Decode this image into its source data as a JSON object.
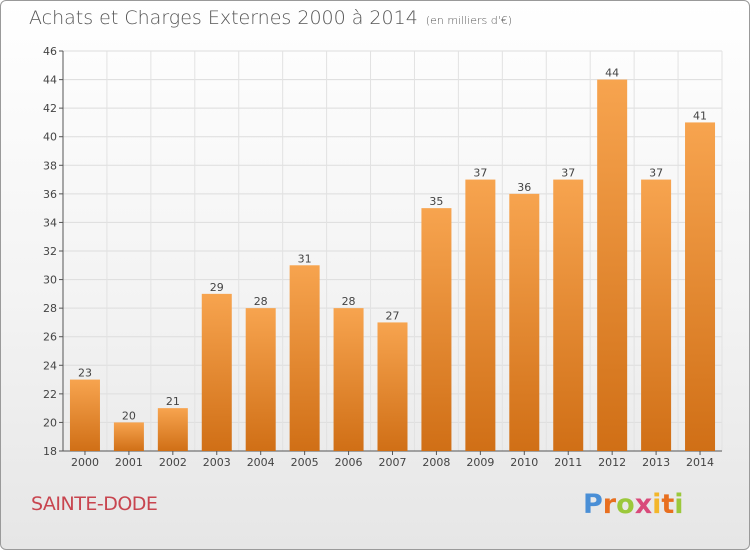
{
  "chart_data": {
    "type": "bar",
    "title": "Achats et Charges Externes 2000 à 2014",
    "subtitle": "(en milliers d'€)",
    "categories": [
      "2000",
      "2001",
      "2002",
      "2003",
      "2004",
      "2005",
      "2006",
      "2007",
      "2008",
      "2009",
      "2010",
      "2011",
      "2012",
      "2013",
      "2014"
    ],
    "values": [
      23,
      20,
      21,
      29,
      28,
      31,
      28,
      27,
      35,
      37,
      36,
      37,
      44,
      37,
      41
    ],
    "ylim": [
      18,
      46
    ],
    "yticks": [
      18,
      20,
      22,
      24,
      26,
      28,
      30,
      32,
      34,
      36,
      38,
      40,
      42,
      44,
      46
    ],
    "grid": true,
    "bar_color_top": "#f7a44f",
    "bar_color_bottom": "#d06f16"
  },
  "footer": {
    "commune": "SAINTE-DODE",
    "logo_letters": [
      "P",
      "r",
      "o",
      "x",
      "i",
      "t",
      "i"
    ],
    "logo_text": "Proxiti"
  }
}
